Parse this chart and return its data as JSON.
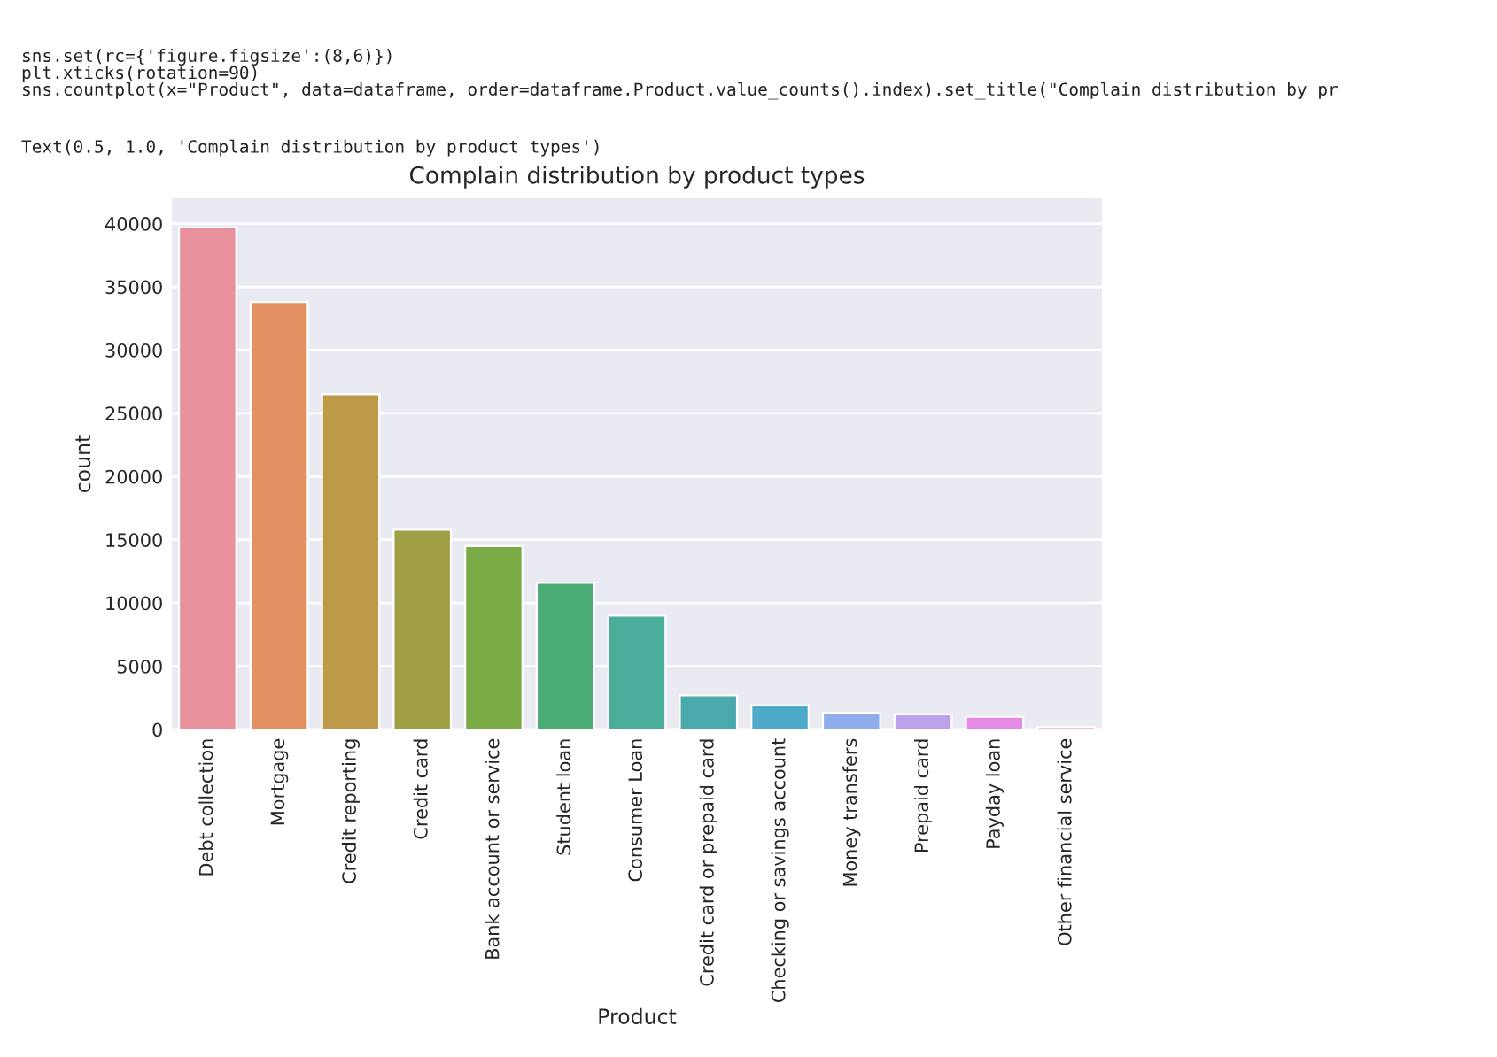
{
  "chart_data": {
    "type": "bar",
    "title": "Complain distribution by product types",
    "xlabel": "Product",
    "ylabel": "count",
    "categories": [
      "Debt collection",
      "Mortgage",
      "Credit reporting",
      "Credit card",
      "Bank account or service",
      "Student loan",
      "Consumer Loan",
      "Credit card or prepaid card",
      "Checking or savings account",
      "Money transfers",
      "Prepaid card",
      "Payday loan",
      "Other financial service"
    ],
    "values": [
      39700,
      33800,
      26500,
      15800,
      14500,
      11600,
      9000,
      2700,
      1900,
      1300,
      1200,
      1000,
      200
    ],
    "colors": [
      "#e8919c",
      "#e39160",
      "#bd9a47",
      "#9fa045",
      "#79aa46",
      "#4aac74",
      "#49ad9a",
      "#4aa9ab",
      "#4eaac8",
      "#8fadea",
      "#bba1ea",
      "#e68be5",
      "#f0a9c9"
    ],
    "ylim": [
      0,
      42000
    ],
    "yticks": [
      0,
      5000,
      10000,
      15000,
      20000,
      25000,
      30000,
      35000,
      40000
    ],
    "grid": "y",
    "annotations": [
      "sns.set(rc={'figure.figsize':(8,6)})",
      "plt.xticks(rotation=90)",
      "sns.countplot(x=\"Product\", data=dataframe, order=dataframe.Product.value_counts().index).set_title(\"Complain distribution by pr",
      "Text(0.5, 1.0, 'Complain distribution by product types')"
    ]
  }
}
